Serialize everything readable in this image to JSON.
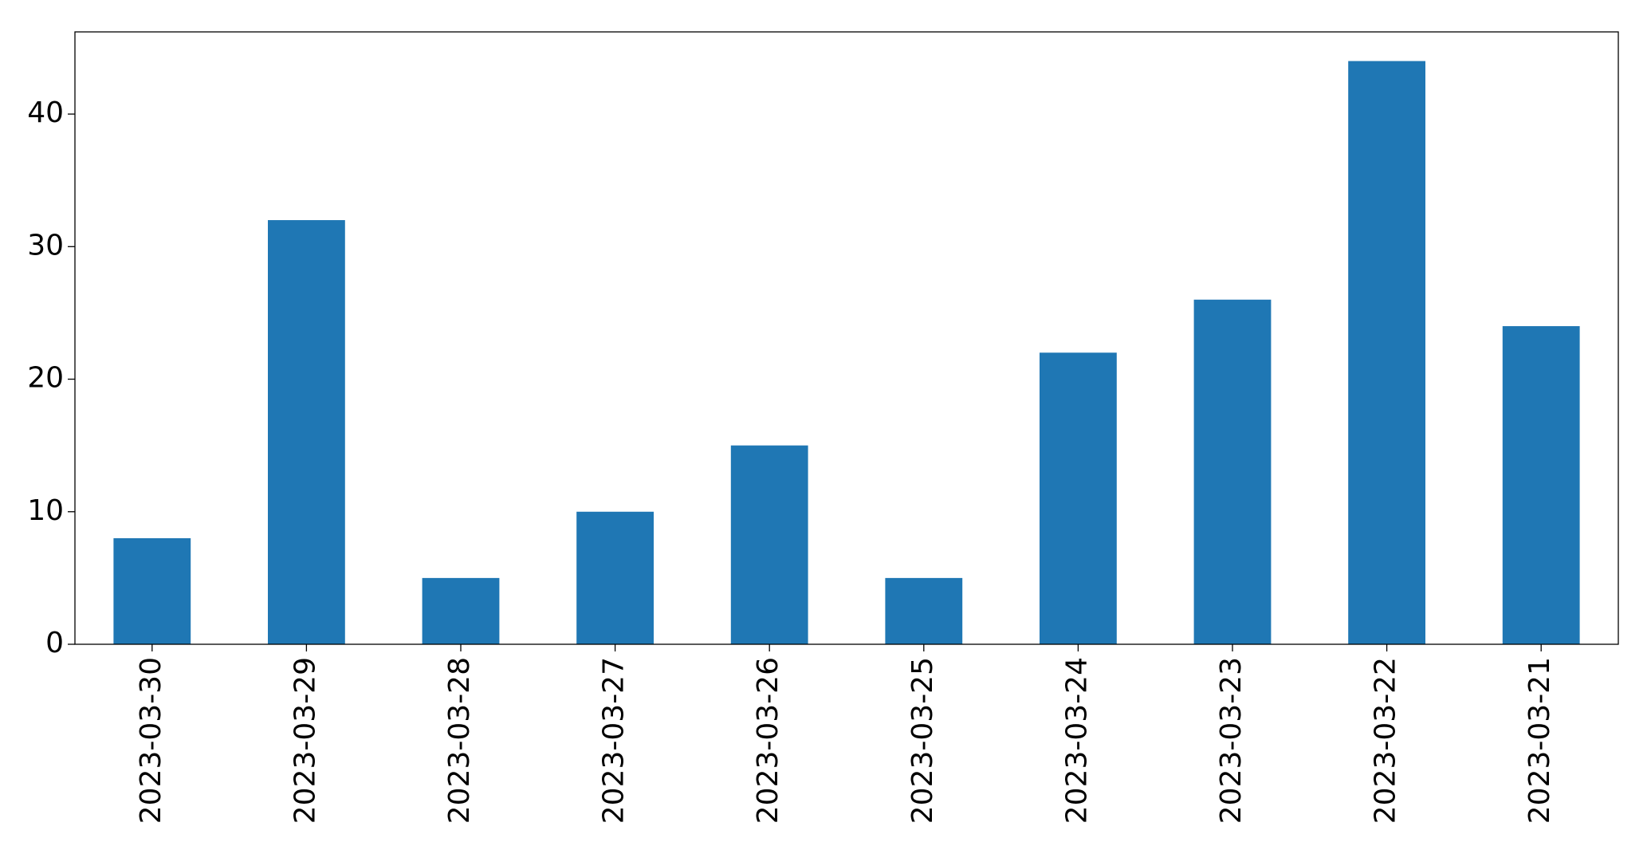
{
  "chart_data": {
    "type": "bar",
    "categories": [
      "2023-03-30",
      "2023-03-29",
      "2023-03-28",
      "2023-03-27",
      "2023-03-26",
      "2023-03-25",
      "2023-03-24",
      "2023-03-23",
      "2023-03-22",
      "2023-03-21"
    ],
    "values": [
      8,
      32,
      5,
      10,
      15,
      5,
      22,
      26,
      44,
      24
    ],
    "color": "#1f77b4",
    "ylim": [
      0,
      46.2
    ],
    "yticks": [
      0,
      10,
      20,
      30,
      40
    ],
    "grid": false
  }
}
